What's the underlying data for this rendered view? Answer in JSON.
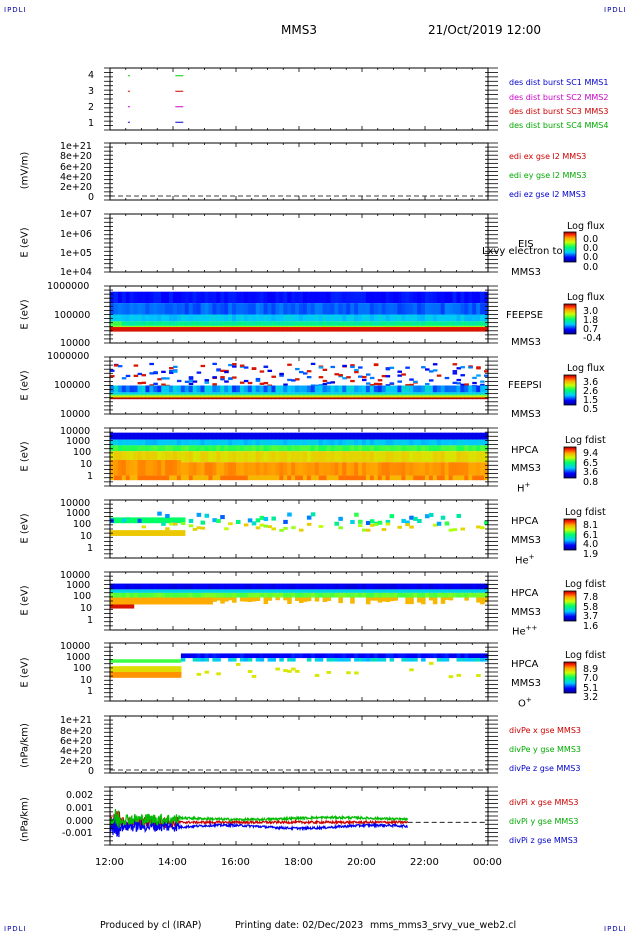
{
  "header": {
    "corner_label": "IPDLI",
    "mission": "MMS3",
    "datetime": "21/Oct/2019 12:00"
  },
  "footer": {
    "produced_by": "Produced by cl (IRAP)",
    "printing_date": "Printing date: 02/Dec/2023",
    "filename": "mms_mms3_srvy_vue_web2.cl"
  },
  "x_axis": {
    "ticks": [
      "12:00",
      "14:00",
      "16:00",
      "18:00",
      "20:00",
      "22:00",
      "00:00"
    ]
  },
  "panels": {
    "burst": {
      "yticks": [
        "4",
        "3",
        "2",
        "1"
      ],
      "legend": [
        {
          "text": "des dist burst SC1 MMS1",
          "color": "#0000cc"
        },
        {
          "text": "des dist burst SC2 MMS2",
          "color": "#cc00cc"
        },
        {
          "text": "des dist burst SC3 MMS3",
          "color": "#cc0000"
        },
        {
          "text": "des dist burst SC4 MMS4",
          "color": "#00aa00"
        }
      ]
    },
    "edi": {
      "ylabel": "(mV/m)",
      "yticks": [
        "1e+21",
        "8e+20",
        "6e+20",
        "4e+20",
        "2e+20",
        "0"
      ],
      "legend": [
        {
          "text": "edi ex gse l2 MMS3",
          "color": "#cc0000"
        },
        {
          "text": "edi ey gse l2 MMS3",
          "color": "#00aa00"
        },
        {
          "text": "edi ez gse l2 MMS3",
          "color": "#0000cc"
        }
      ]
    },
    "eis": {
      "ylabel": "E (eV)",
      "yticks": [
        "1e+07",
        "1e+06",
        "1e+05",
        "1e+04"
      ],
      "inst": "EIS",
      "sc": "MMS3",
      "overlap": "Lxvy electron to",
      "cb_title": "Log flux",
      "cb_ticks": [
        "0.0",
        "0.0",
        "0.0",
        "0.0"
      ]
    },
    "feepse": {
      "ylabel": "E (eV)",
      "yticks": [
        "1000000",
        "100000",
        "10000"
      ],
      "inst": "FEEPSE",
      "sc": "MMS3",
      "cb_title": "Log flux",
      "cb_ticks": [
        "3.0",
        "1.8",
        "0.7",
        "-0.4"
      ]
    },
    "feepsi": {
      "ylabel": "E (eV)",
      "yticks": [
        "1000000",
        "100000",
        "10000"
      ],
      "inst": "FEEPSI",
      "sc": "MMS3",
      "cb_title": "Log flux",
      "cb_ticks": [
        "3.6",
        "2.6",
        "1.5",
        "0.5"
      ]
    },
    "hpca_h": {
      "ylabel": "E (eV)",
      "yticks": [
        "10000",
        "1000",
        "100",
        "10",
        "1"
      ],
      "inst": "HPCA",
      "sc": "MMS3",
      "species": "H",
      "charge": "+",
      "cb_title": "Log fdist",
      "cb_ticks": [
        "9.4",
        "6.5",
        "3.6",
        "0.8"
      ]
    },
    "hpca_he": {
      "ylabel": "E (eV)",
      "yticks": [
        "10000",
        "1000",
        "100",
        "10",
        "1"
      ],
      "inst": "HPCA",
      "sc": "MMS3",
      "species": "He",
      "charge": "+",
      "cb_title": "Log fdist",
      "cb_ticks": [
        "8.1",
        "6.1",
        "4.0",
        "1.9"
      ]
    },
    "hpca_hepp": {
      "ylabel": "E (eV)",
      "yticks": [
        "10000",
        "1000",
        "100",
        "10",
        "1"
      ],
      "inst": "HPCA",
      "sc": "MMS3",
      "species": "He",
      "charge": "++",
      "cb_title": "Log fdist",
      "cb_ticks": [
        "7.8",
        "5.8",
        "3.7",
        "1.6"
      ]
    },
    "hpca_o": {
      "ylabel": "E (eV)",
      "yticks": [
        "10000",
        "1000",
        "100",
        "10",
        "1"
      ],
      "inst": "HPCA",
      "sc": "MMS3",
      "species": "O",
      "charge": "+",
      "cb_title": "Log fdist",
      "cb_ticks": [
        "8.9",
        "7.0",
        "5.1",
        "3.2"
      ]
    },
    "divpe": {
      "ylabel": "(nPa/km)",
      "yticks": [
        "1e+21",
        "8e+20",
        "6e+20",
        "4e+20",
        "2e+20",
        "0"
      ],
      "legend": [
        {
          "text": "divPe x gse MMS3",
          "color": "#cc0000"
        },
        {
          "text": "divPe y gse MMS3",
          "color": "#00aa00"
        },
        {
          "text": "divPe z gse MMS3",
          "color": "#0000cc"
        }
      ]
    },
    "divpi": {
      "ylabel": "(nPa/km)",
      "yticks": [
        "0.002",
        "0.001",
        "0.000",
        "-0.001"
      ],
      "legend": [
        {
          "text": "divPi x gse MMS3",
          "color": "#cc0000"
        },
        {
          "text": "divPi y gse MMS3",
          "color": "#00aa00"
        },
        {
          "text": "divPi z gse MMS3",
          "color": "#0000cc"
        }
      ]
    }
  },
  "chart_data": [
    {
      "type": "scatter",
      "description_key": "burst",
      "x_unit": "hours since 21/Oct/2019 12:00",
      "series": [
        {
          "name": "des dist burst SC1 MMS1",
          "y": 1,
          "x": [
            0.6,
            2.2
          ]
        },
        {
          "name": "des dist burst SC2 MMS2",
          "y": 2,
          "x": [
            0.6,
            2.2
          ]
        },
        {
          "name": "des dist burst SC3 MMS3",
          "y": 3,
          "x": [
            0.6,
            2.2
          ]
        },
        {
          "name": "des dist burst SC4 MMS4",
          "y": 4,
          "x": [
            0.6,
            2.2
          ]
        }
      ],
      "ylim": [
        0.5,
        4.5
      ]
    },
    {
      "type": "line",
      "description_key": "edi",
      "series": [],
      "ylim": [
        0,
        1e+21
      ]
    },
    {
      "type": "heatmap",
      "description_key": "feepse",
      "xlim": [
        0,
        12
      ],
      "ylim_log10": [
        4,
        6
      ],
      "note": "dense high-energy flux with strong low-energy band near 40 keV"
    },
    {
      "type": "heatmap",
      "description_key": "feepsi",
      "xlim": [
        0,
        12
      ],
      "ylim_log10": [
        4,
        6
      ]
    },
    {
      "type": "heatmap",
      "description_key": "hpca_h",
      "xlim": [
        0,
        12
      ],
      "ylim_log10": [
        0,
        4.3
      ]
    },
    {
      "type": "heatmap",
      "description_key": "hpca_he",
      "xlim": [
        0,
        12
      ],
      "ylim_log10": [
        0,
        4.3
      ]
    },
    {
      "type": "heatmap",
      "description_key": "hpca_hepp",
      "xlim": [
        0,
        12
      ],
      "ylim_log10": [
        0,
        4.3
      ]
    },
    {
      "type": "heatmap",
      "description_key": "hpca_o",
      "xlim": [
        0,
        12
      ],
      "ylim_log10": [
        0,
        4.3
      ]
    },
    {
      "type": "line",
      "description_key": "divpe",
      "series": [],
      "ylim": [
        0,
        1e+21
      ]
    },
    {
      "type": "line",
      "description_key": "divpi",
      "xlim": [
        0,
        12
      ],
      "ylim": [
        -0.0018,
        0.0028
      ],
      "data_until_hour": 9.45,
      "series": [
        {
          "name": "divPi x gse MMS3",
          "color": "#cc0000",
          "level": 0.0
        },
        {
          "name": "divPi y gse MMS3",
          "color": "#00bb00",
          "level": 0.00025
        },
        {
          "name": "divPi z gse MMS3",
          "color": "#0000ee",
          "level": -0.0003
        }
      ]
    }
  ]
}
